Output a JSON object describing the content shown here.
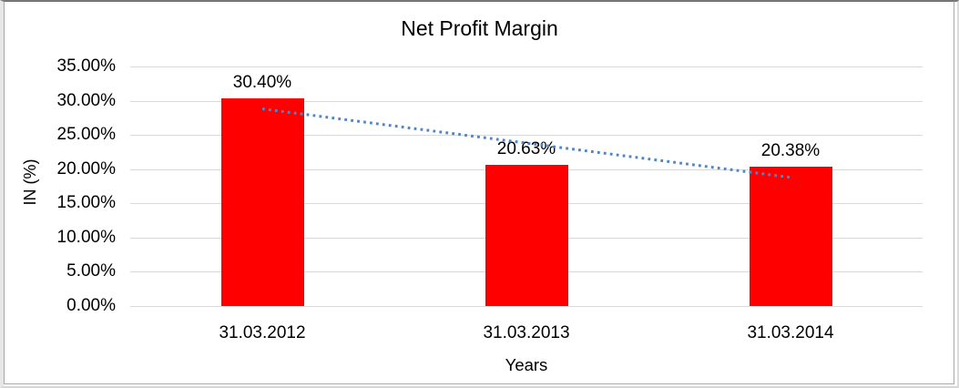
{
  "chart_data": {
    "type": "bar",
    "title": "Net Profit Margin",
    "categories": [
      "31.03.2012",
      "31.03.2013",
      "31.03.2014"
    ],
    "values": [
      30.4,
      20.63,
      20.38
    ],
    "data_labels": [
      "30.40%",
      "20.63%",
      "20.38%"
    ],
    "xlabel": "Years",
    "ylabel": "IN (%)",
    "ylim": [
      0,
      35
    ],
    "ytick_step": 5,
    "ytick_labels": [
      "0.00%",
      "5.00%",
      "10.00%",
      "15.00%",
      "20.00%",
      "25.00%",
      "30.00%",
      "35.00%"
    ],
    "grid": true,
    "legend": false,
    "bar_color": "#ff0000",
    "gridline_color": "#d9d9d9",
    "text_color": "#000000",
    "trendline": {
      "type": "linear",
      "style": "dotted",
      "color": "#4e86c8"
    }
  }
}
